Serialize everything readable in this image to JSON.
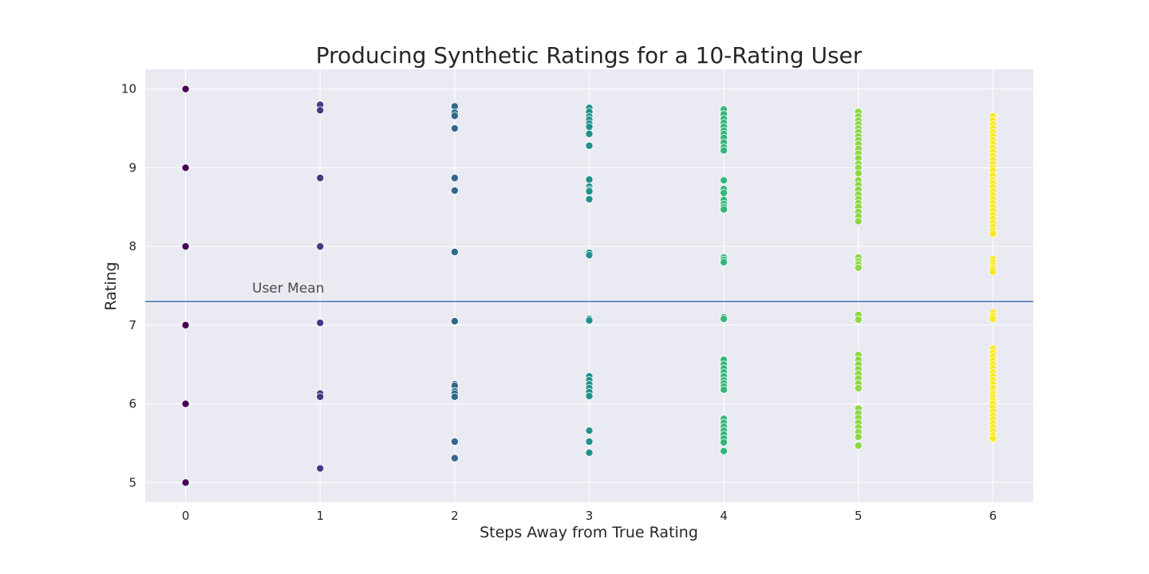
{
  "chart_data": {
    "type": "scatter",
    "title": "Producing Synthetic Ratings for a 10-Rating User",
    "xlabel": "Steps Away from True Rating",
    "ylabel": "Rating",
    "xlim": [
      -0.3,
      6.3
    ],
    "ylim": [
      4.75,
      10.25
    ],
    "xticks": [
      0,
      1,
      2,
      3,
      4,
      5,
      6
    ],
    "yticks": [
      5,
      6,
      7,
      8,
      9,
      10
    ],
    "grid": true,
    "reference_line": {
      "y": 7.3,
      "label": "User Mean",
      "color": "#4c72b0"
    },
    "colors": [
      "#440154",
      "#443983",
      "#31688e",
      "#21918c",
      "#35b779",
      "#8fd744",
      "#fde725"
    ],
    "series": [
      {
        "x": 0,
        "values": [
          10.0,
          9.0,
          8.0,
          7.0,
          6.0,
          5.0
        ]
      },
      {
        "x": 1,
        "values": [
          9.8,
          9.73,
          8.87,
          8.0,
          7.03,
          6.13,
          6.09,
          5.18
        ]
      },
      {
        "x": 2,
        "values": [
          9.78,
          9.7,
          9.66,
          9.5,
          8.87,
          8.71,
          7.93,
          7.05,
          6.25,
          6.23,
          6.16,
          6.13,
          6.09,
          5.52,
          5.31
        ]
      },
      {
        "x": 3,
        "values": [
          9.76,
          9.71,
          9.65,
          9.61,
          9.56,
          9.52,
          9.43,
          9.28,
          8.85,
          8.76,
          8.72,
          8.7,
          8.6,
          7.92,
          7.89,
          7.08,
          7.06,
          6.35,
          6.3,
          6.25,
          6.2,
          6.15,
          6.1,
          5.66,
          5.52,
          5.38
        ]
      },
      {
        "x": 4,
        "values": [
          9.74,
          9.68,
          9.62,
          9.57,
          9.52,
          9.47,
          9.43,
          9.38,
          9.32,
          9.26,
          9.22,
          8.84,
          8.73,
          8.68,
          8.59,
          8.54,
          8.5,
          8.47,
          7.86,
          7.83,
          7.8,
          7.1,
          7.08,
          6.56,
          6.5,
          6.45,
          6.4,
          6.35,
          6.3,
          6.26,
          6.22,
          6.18,
          5.81,
          5.76,
          5.71,
          5.66,
          5.61,
          5.56,
          5.51,
          5.4
        ]
      },
      {
        "x": 5,
        "values": [
          9.71,
          9.65,
          9.6,
          9.55,
          9.5,
          9.45,
          9.4,
          9.35,
          9.3,
          9.24,
          9.18,
          9.12,
          9.05,
          9.0,
          8.93,
          8.84,
          8.78,
          8.72,
          8.66,
          8.6,
          8.55,
          8.5,
          8.44,
          8.38,
          8.32,
          7.86,
          7.81,
          7.77,
          7.73,
          7.13,
          7.07,
          6.62,
          6.56,
          6.5,
          6.44,
          6.38,
          6.32,
          6.26,
          6.2,
          5.94,
          5.88,
          5.82,
          5.76,
          5.7,
          5.64,
          5.58,
          5.47
        ]
      },
      {
        "x": 6,
        "values": [
          9.65,
          9.6,
          9.55,
          9.5,
          9.45,
          9.4,
          9.35,
          9.3,
          9.25,
          9.2,
          9.15,
          9.1,
          9.05,
          9.0,
          8.96,
          8.9,
          8.84,
          8.8,
          8.75,
          8.7,
          8.65,
          8.6,
          8.55,
          8.5,
          8.45,
          8.4,
          8.35,
          8.3,
          8.25,
          8.2,
          8.16,
          7.84,
          7.8,
          7.76,
          7.72,
          7.68,
          7.16,
          7.12,
          7.08,
          6.7,
          6.65,
          6.6,
          6.55,
          6.5,
          6.45,
          6.4,
          6.35,
          6.3,
          6.25,
          6.2,
          6.15,
          6.12,
          6.08,
          6.04,
          6.0,
          5.95,
          5.9,
          5.85,
          5.8,
          5.75,
          5.7,
          5.65,
          5.6,
          5.56
        ]
      }
    ]
  }
}
